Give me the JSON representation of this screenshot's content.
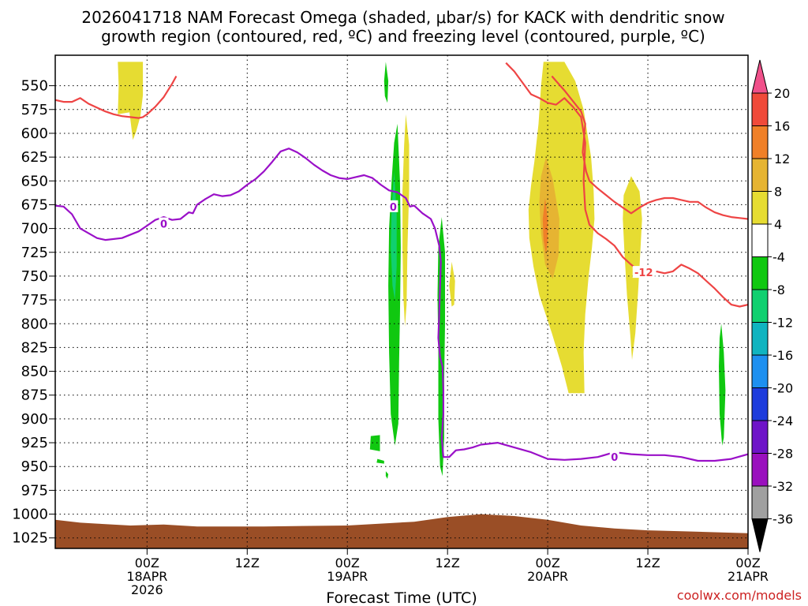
{
  "chart_data": {
    "type": "heatmap",
    "title_line1": "2026041718 NAM Forecast Omega (shaded, μbar/s) for KACK with dendritic snow",
    "title_line2": "growth region (contoured, red, ºC) and freezing level (contoured, purple, ºC)",
    "xlabel": "Forecast Time (UTC)",
    "credit": "coolwx.com/models",
    "x_hours_range": [
      -5,
      78
    ],
    "y_pressure_range": [
      518,
      1036
    ],
    "y_ticks": [
      550,
      575,
      600,
      625,
      650,
      675,
      700,
      725,
      750,
      775,
      800,
      825,
      850,
      875,
      900,
      925,
      950,
      975,
      1000,
      1025
    ],
    "x_ticks": [
      {
        "hour": 6,
        "time": "00Z",
        "date": "18APR",
        "year": "2026"
      },
      {
        "hour": 18,
        "time": "12Z",
        "date": "",
        "year": ""
      },
      {
        "hour": 30,
        "time": "00Z",
        "date": "19APR",
        "year": ""
      },
      {
        "hour": 42,
        "time": "12Z",
        "date": "",
        "year": ""
      },
      {
        "hour": 54,
        "time": "00Z",
        "date": "20APR",
        "year": ""
      },
      {
        "hour": 66,
        "time": "12Z",
        "date": "",
        "year": ""
      },
      {
        "hour": 78,
        "time": "00Z",
        "date": "21APR",
        "year": ""
      }
    ],
    "colorbar": {
      "labels": [
        "20",
        "16",
        "12",
        "8",
        "4",
        "-4",
        "-8",
        "-12",
        "-16",
        "-20",
        "-24",
        "-28",
        "-32",
        "-36"
      ],
      "colors": [
        "#f0508a",
        "#f04a3a",
        "#f08028",
        "#e6b432",
        "#e6dc32",
        "#ffffff",
        "#10c810",
        "#10d070",
        "#10b4c0",
        "#1e90f0",
        "#1e3cdc",
        "#6e14c8",
        "#9a10be",
        "#a0a0a0",
        "#000000"
      ]
    },
    "colors": {
      "dgz": "#ee4444",
      "freezing": "#9a10c8",
      "ground": "#9a4e26",
      "credit": "#cc2222"
    },
    "freezing_level": {
      "label": "0",
      "points": [
        [
          -5,
          676
        ],
        [
          -4,
          677
        ],
        [
          -3,
          685
        ],
        [
          -2,
          700
        ],
        [
          0,
          710
        ],
        [
          1,
          712
        ],
        [
          3,
          710
        ],
        [
          5,
          703
        ],
        [
          6,
          697
        ],
        [
          7,
          691
        ],
        [
          8,
          688
        ],
        [
          9,
          691
        ],
        [
          10,
          690
        ],
        [
          11,
          683
        ],
        [
          11.5,
          684
        ],
        [
          12,
          675
        ],
        [
          13,
          669
        ],
        [
          14,
          664
        ],
        [
          15,
          666
        ],
        [
          16,
          665
        ],
        [
          17,
          661
        ],
        [
          18,
          654
        ],
        [
          19,
          648
        ],
        [
          20,
          640
        ],
        [
          21,
          630
        ],
        [
          22,
          619
        ],
        [
          23,
          616
        ],
        [
          24,
          620
        ],
        [
          25,
          626
        ],
        [
          26,
          633
        ],
        [
          27,
          639
        ],
        [
          28,
          644
        ],
        [
          29,
          647
        ],
        [
          30,
          648
        ],
        [
          31,
          646
        ],
        [
          32,
          644
        ],
        [
          33,
          647
        ],
        [
          34,
          654
        ],
        [
          35,
          660
        ],
        [
          36,
          662
        ],
        [
          37,
          668
        ],
        [
          37.5,
          677
        ],
        [
          38,
          676
        ],
        [
          39,
          684
        ],
        [
          40,
          690
        ],
        [
          40.5,
          700
        ],
        [
          41,
          718
        ],
        [
          41.2,
          735
        ],
        [
          41.1,
          760
        ],
        [
          41,
          790
        ],
        [
          40.9,
          815
        ],
        [
          41.1,
          835
        ],
        [
          41.4,
          845
        ],
        [
          41.5,
          870
        ],
        [
          41.5,
          895
        ],
        [
          41.3,
          920
        ],
        [
          41.5,
          940
        ],
        [
          42.2,
          940
        ],
        [
          43,
          933
        ],
        [
          44,
          932
        ],
        [
          45,
          930
        ],
        [
          46,
          927
        ],
        [
          48,
          925
        ],
        [
          50,
          930
        ],
        [
          52,
          935
        ],
        [
          54,
          942
        ],
        [
          56,
          943
        ],
        [
          58,
          942
        ],
        [
          60,
          940
        ],
        [
          62,
          935
        ],
        [
          64,
          937
        ],
        [
          66,
          938
        ],
        [
          68,
          938
        ],
        [
          70,
          940
        ],
        [
          72,
          944
        ],
        [
          74,
          944
        ],
        [
          76,
          942
        ],
        [
          78,
          937
        ]
      ],
      "label_positions": [
        [
          8,
          695
        ],
        [
          35.5,
          677
        ],
        [
          62,
          940
        ]
      ]
    },
    "dgz_minus12": {
      "label": "-12",
      "line1": [
        [
          -5,
          565
        ],
        [
          -4,
          567
        ],
        [
          -3,
          567
        ],
        [
          -2,
          563
        ],
        [
          -1,
          569
        ],
        [
          0,
          573
        ],
        [
          1,
          577
        ],
        [
          2,
          580
        ],
        [
          3,
          582
        ],
        [
          4,
          583
        ],
        [
          5,
          584
        ],
        [
          5.5,
          583
        ],
        [
          6,
          580
        ],
        [
          7,
          572
        ],
        [
          8,
          562
        ],
        [
          9,
          548
        ],
        [
          9.5,
          540
        ]
      ],
      "line2": [
        [
          49,
          526
        ],
        [
          50,
          535
        ],
        [
          51,
          547
        ],
        [
          52,
          559
        ],
        [
          53,
          563
        ],
        [
          54,
          568
        ],
        [
          55,
          570
        ],
        [
          56,
          563
        ],
        [
          57,
          572
        ],
        [
          58,
          583
        ],
        [
          58.5,
          610
        ],
        [
          58.3,
          650
        ],
        [
          58.5,
          680
        ],
        [
          59,
          696
        ],
        [
          60,
          705
        ],
        [
          61,
          711
        ],
        [
          62,
          718
        ],
        [
          63,
          730
        ],
        [
          64,
          738
        ],
        [
          65,
          745
        ]
      ],
      "line3": [
        [
          67,
          745
        ],
        [
          68,
          747
        ],
        [
          69,
          745
        ],
        [
          70,
          738
        ],
        [
          71,
          742
        ],
        [
          72,
          747
        ],
        [
          73,
          755
        ],
        [
          74,
          763
        ],
        [
          75,
          772
        ],
        [
          76,
          780
        ],
        [
          77,
          782
        ],
        [
          78,
          780
        ]
      ],
      "line4": [
        [
          54.5,
          540
        ],
        [
          55,
          545
        ],
        [
          56,
          555
        ],
        [
          57,
          566
        ],
        [
          58,
          577
        ],
        [
          58.5,
          590
        ],
        [
          58.2,
          620
        ],
        [
          58.6,
          640
        ],
        [
          59,
          650
        ],
        [
          60,
          658
        ],
        [
          61,
          665
        ],
        [
          62,
          672
        ],
        [
          63,
          678
        ],
        [
          64,
          684
        ],
        [
          65,
          678
        ],
        [
          66,
          673
        ],
        [
          67,
          670
        ],
        [
          68,
          668
        ],
        [
          69,
          668
        ],
        [
          70,
          670
        ],
        [
          71,
          672
        ],
        [
          72,
          672
        ],
        [
          73,
          678
        ],
        [
          74,
          683
        ],
        [
          75,
          686
        ],
        [
          76,
          688
        ],
        [
          77,
          689
        ],
        [
          78,
          690
        ]
      ],
      "label_positions": [
        [
          65.5,
          746
        ]
      ]
    },
    "ground_profile": [
      [
        -5,
        1006
      ],
      [
        -2,
        1009
      ],
      [
        0,
        1010
      ],
      [
        4,
        1012
      ],
      [
        8,
        1011
      ],
      [
        12,
        1013
      ],
      [
        20,
        1013
      ],
      [
        30,
        1012
      ],
      [
        38,
        1008
      ],
      [
        42,
        1003
      ],
      [
        46,
        1000
      ],
      [
        50,
        1002
      ],
      [
        54,
        1006
      ],
      [
        58,
        1012
      ],
      [
        62,
        1015
      ],
      [
        66,
        1017
      ],
      [
        70,
        1018
      ],
      [
        74,
        1019
      ],
      [
        78,
        1020
      ]
    ],
    "omega_regions": [
      {
        "value": 4,
        "points": [
          [
            2.5,
            525
          ],
          [
            5.5,
            525
          ],
          [
            5.5,
            560
          ],
          [
            5.2,
            582
          ],
          [
            4.7,
            598
          ],
          [
            4.3,
            607
          ],
          [
            3.9,
            578
          ],
          [
            2.5,
            580
          ],
          [
            2.6,
            550
          ]
        ]
      },
      {
        "value": 4,
        "points": [
          [
            53.5,
            525
          ],
          [
            56,
            525
          ],
          [
            57.3,
            545
          ],
          [
            58.3,
            575
          ],
          [
            59.2,
            625
          ],
          [
            59.5,
            660
          ],
          [
            59.6,
            690
          ],
          [
            59.3,
            720
          ],
          [
            58.9,
            750
          ],
          [
            58.5,
            790
          ],
          [
            58.3,
            830
          ],
          [
            58.4,
            873
          ],
          [
            56.5,
            873
          ],
          [
            55.7,
            845
          ],
          [
            54.5,
            810
          ],
          [
            53,
            770
          ],
          [
            52.3,
            740
          ],
          [
            51.8,
            710
          ],
          [
            51.7,
            680
          ],
          [
            52,
            655
          ],
          [
            52.4,
            630
          ],
          [
            52.9,
            590
          ],
          [
            53.2,
            550
          ]
        ]
      },
      {
        "value": 8,
        "points": [
          [
            53.8,
            625
          ],
          [
            54.6,
            648
          ],
          [
            55.4,
            690
          ],
          [
            55.3,
            728
          ],
          [
            54.6,
            753
          ],
          [
            53.7,
            738
          ],
          [
            53.2,
            705
          ],
          [
            53,
            672
          ],
          [
            53.2,
            645
          ]
        ]
      },
      {
        "value": 12,
        "points": [
          [
            53.7,
            668
          ],
          [
            54,
            690
          ],
          [
            54,
            712
          ],
          [
            53.8,
            727
          ],
          [
            53.5,
            712
          ],
          [
            53.4,
            690
          ]
        ]
      },
      {
        "value": 4,
        "points": [
          [
            64,
            645
          ],
          [
            65,
            661
          ],
          [
            65.3,
            690
          ],
          [
            65,
            740
          ],
          [
            64.8,
            770
          ],
          [
            64.5,
            810
          ],
          [
            64.1,
            838
          ],
          [
            63.9,
            812
          ],
          [
            63.5,
            770
          ],
          [
            63.2,
            725
          ],
          [
            63,
            690
          ],
          [
            63.1,
            665
          ]
        ]
      },
      {
        "value": 4,
        "points": [
          [
            37,
            580
          ],
          [
            37.4,
            612
          ],
          [
            37.4,
            660
          ],
          [
            37.2,
            720
          ],
          [
            37.1,
            780
          ],
          [
            36.9,
            803
          ],
          [
            36.7,
            770
          ],
          [
            36.6,
            720
          ],
          [
            36.6,
            660
          ],
          [
            36.8,
            612
          ]
        ]
      },
      {
        "value": 4,
        "points": [
          [
            42.5,
            735
          ],
          [
            42.9,
            755
          ],
          [
            42.8,
            780
          ],
          [
            42.5,
            782
          ],
          [
            42.2,
            760
          ]
        ]
      },
      {
        "value": -8,
        "points": [
          [
            34.6,
            525
          ],
          [
            34.9,
            545
          ],
          [
            34.8,
            568
          ],
          [
            34.5,
            561
          ],
          [
            34.4,
            545
          ]
        ]
      },
      {
        "value": -8,
        "points": [
          [
            36,
            590
          ],
          [
            36.3,
            650
          ],
          [
            36.4,
            720
          ],
          [
            36.3,
            790
          ],
          [
            36.2,
            840
          ],
          [
            36.1,
            905
          ],
          [
            35.7,
            928
          ],
          [
            35.2,
            895
          ],
          [
            35,
            830
          ],
          [
            34.9,
            760
          ],
          [
            35,
            700
          ],
          [
            35.3,
            650
          ],
          [
            35.6,
            610
          ]
        ]
      },
      {
        "value": -12,
        "points": [
          [
            35.6,
            640
          ],
          [
            35.9,
            685
          ],
          [
            35.9,
            740
          ],
          [
            35.7,
            775
          ],
          [
            35.4,
            760
          ],
          [
            35.2,
            720
          ],
          [
            35.3,
            680
          ]
        ]
      },
      {
        "value": -8,
        "points": [
          [
            41.3,
            688
          ],
          [
            41.7,
            725
          ],
          [
            41.7,
            800
          ],
          [
            41.6,
            860
          ],
          [
            41.6,
            920
          ],
          [
            41.4,
            960
          ],
          [
            41.1,
            950
          ],
          [
            40.9,
            900
          ],
          [
            40.9,
            830
          ],
          [
            40.8,
            770
          ],
          [
            40.9,
            720
          ]
        ]
      },
      {
        "value": -8,
        "points": [
          [
            74.8,
            800
          ],
          [
            75.1,
            830
          ],
          [
            75.3,
            870
          ],
          [
            75.1,
            920
          ],
          [
            74.9,
            928
          ],
          [
            74.6,
            895
          ],
          [
            74.5,
            845
          ],
          [
            74.6,
            815
          ]
        ]
      },
      {
        "value": -8,
        "points": [
          [
            32.8,
            918
          ],
          [
            33.9,
            917
          ],
          [
            33.9,
            934
          ],
          [
            32.7,
            932
          ]
        ]
      },
      {
        "value": -8,
        "points": [
          [
            33.6,
            942
          ],
          [
            34.4,
            944
          ],
          [
            34.4,
            947
          ],
          [
            33.5,
            946
          ]
        ]
      },
      {
        "value": -8,
        "points": [
          [
            34.6,
            955
          ],
          [
            34.9,
            958
          ],
          [
            34.8,
            963
          ],
          [
            34.6,
            960
          ]
        ]
      }
    ]
  }
}
